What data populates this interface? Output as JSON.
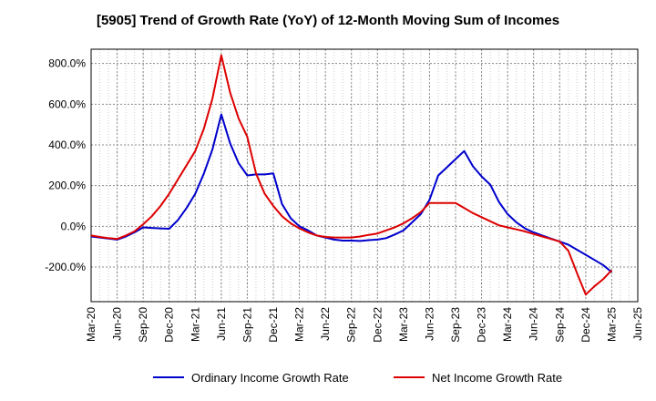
{
  "chart_data": {
    "type": "line",
    "title": "[5905]  Trend of Growth Rate (YoY) of 12-Month Moving Sum of Incomes",
    "xlabel": "",
    "ylabel": "",
    "x_ticks": [
      "Mar-20",
      "Jun-20",
      "Sep-20",
      "Dec-20",
      "Mar-21",
      "Jun-21",
      "Sep-21",
      "Dec-21",
      "Mar-22",
      "Jun-22",
      "Sep-22",
      "Dec-22",
      "Mar-23",
      "Jun-23",
      "Sep-23",
      "Dec-23",
      "Mar-24",
      "Jun-24",
      "Sep-24",
      "Dec-24",
      "Mar-25",
      "Jun-25"
    ],
    "y_ticks": [
      "800.0%",
      "600.0%",
      "400.0%",
      "200.0%",
      "0.0%",
      "-200.0%"
    ],
    "y_tick_values": [
      800,
      600,
      400,
      200,
      0,
      -200
    ],
    "ylim": [
      -370,
      870
    ],
    "grid": true,
    "legend_position": "bottom",
    "x": [
      "Mar-20",
      "Apr-20",
      "May-20",
      "Jun-20",
      "Jul-20",
      "Aug-20",
      "Sep-20",
      "Oct-20",
      "Nov-20",
      "Dec-20",
      "Jan-21",
      "Feb-21",
      "Mar-21",
      "Apr-21",
      "May-21",
      "Jun-21",
      "Jul-21",
      "Aug-21",
      "Sep-21",
      "Oct-21",
      "Nov-21",
      "Dec-21",
      "Jan-22",
      "Feb-22",
      "Mar-22",
      "Apr-22",
      "May-22",
      "Jun-22",
      "Jul-22",
      "Aug-22",
      "Sep-22",
      "Oct-22",
      "Nov-22",
      "Dec-22",
      "Jan-23",
      "Feb-23",
      "Mar-23",
      "Apr-23",
      "May-23",
      "Jun-23",
      "Jul-23",
      "Aug-23",
      "Sep-23",
      "Oct-23",
      "Nov-23",
      "Dec-23",
      "Jan-24",
      "Feb-24",
      "Mar-24",
      "Apr-24",
      "May-24",
      "Jun-24",
      "Jul-24",
      "Aug-24",
      "Sep-24",
      "Oct-24",
      "Nov-24",
      "Dec-24",
      "Jan-25",
      "Feb-25",
      "Mar-25"
    ],
    "series": [
      {
        "name": "Ordinary Income Growth Rate",
        "color": "#0000cc",
        "values": [
          -50,
          -55,
          -60,
          -65,
          -50,
          -30,
          -5,
          -8,
          -10,
          -12,
          30,
          90,
          160,
          260,
          380,
          550,
          410,
          310,
          250,
          255,
          255,
          260,
          110,
          40,
          0,
          -20,
          -45,
          -55,
          -65,
          -70,
          -70,
          -72,
          -68,
          -65,
          -58,
          -40,
          -20,
          20,
          60,
          130,
          250,
          290,
          330,
          370,
          295,
          245,
          205,
          120,
          60,
          20,
          -10,
          -30,
          -45,
          -60,
          -75,
          -90,
          -115,
          -140,
          -165,
          -190,
          -225
        ]
      },
      {
        "name": "Net Income Growth Rate",
        "color": "#dd0000",
        "values": [
          -45,
          -52,
          -58,
          -62,
          -45,
          -25,
          10,
          50,
          100,
          160,
          230,
          300,
          370,
          480,
          630,
          840,
          660,
          530,
          440,
          260,
          160,
          100,
          50,
          15,
          -10,
          -30,
          -45,
          -52,
          -55,
          -55,
          -55,
          -50,
          -42,
          -35,
          -20,
          -5,
          15,
          40,
          70,
          115,
          115,
          115,
          115,
          90,
          65,
          45,
          25,
          5,
          -5,
          -15,
          -25,
          -38,
          -50,
          -62,
          -75,
          -120,
          -230,
          -335,
          -295,
          -260,
          -215
        ]
      }
    ]
  }
}
